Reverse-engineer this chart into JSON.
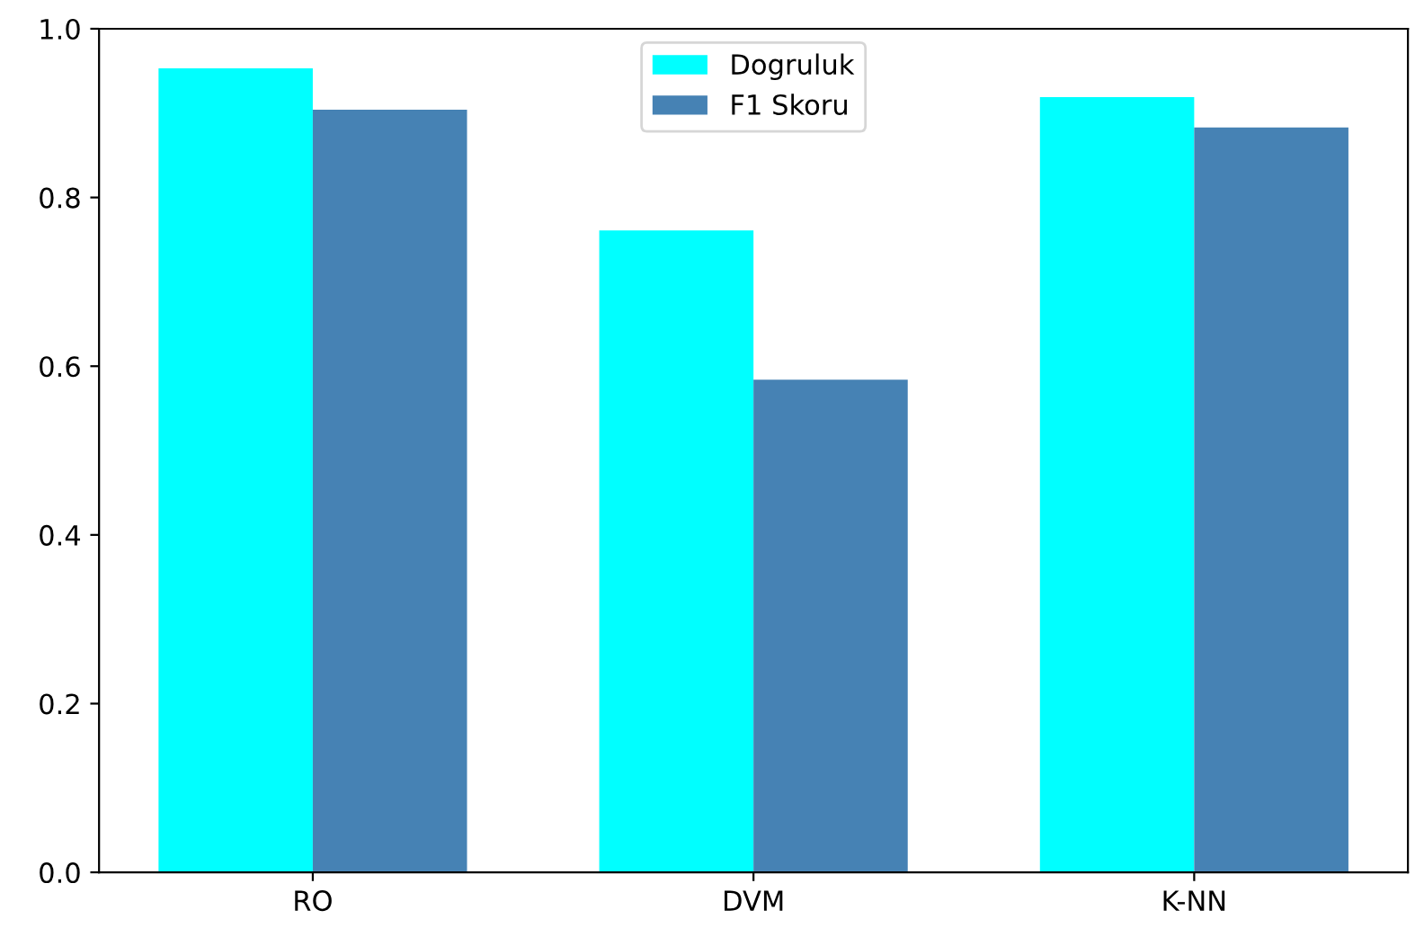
{
  "chart_data": {
    "type": "bar",
    "categories": [
      "RO",
      "DVM",
      "K-NN"
    ],
    "series": [
      {
        "name": "Dogruluk",
        "color": "#00ffff",
        "values": [
          0.953,
          0.761,
          0.919
        ]
      },
      {
        "name": "F1 Skoru",
        "color": "#4682b4",
        "values": [
          0.904,
          0.584,
          0.883
        ]
      }
    ],
    "ylim": [
      0,
      1.0
    ],
    "yticks": [
      {
        "value": 0,
        "label": "0.0"
      },
      {
        "value": 0.2,
        "label": "0.2"
      },
      {
        "value": 0.4,
        "label": "0.4"
      },
      {
        "value": 0.6,
        "label": "0.6"
      },
      {
        "value": 0.8,
        "label": "0.8"
      },
      {
        "value": 1.0,
        "label": "1.0"
      }
    ],
    "legend": "top center",
    "grid": false
  }
}
